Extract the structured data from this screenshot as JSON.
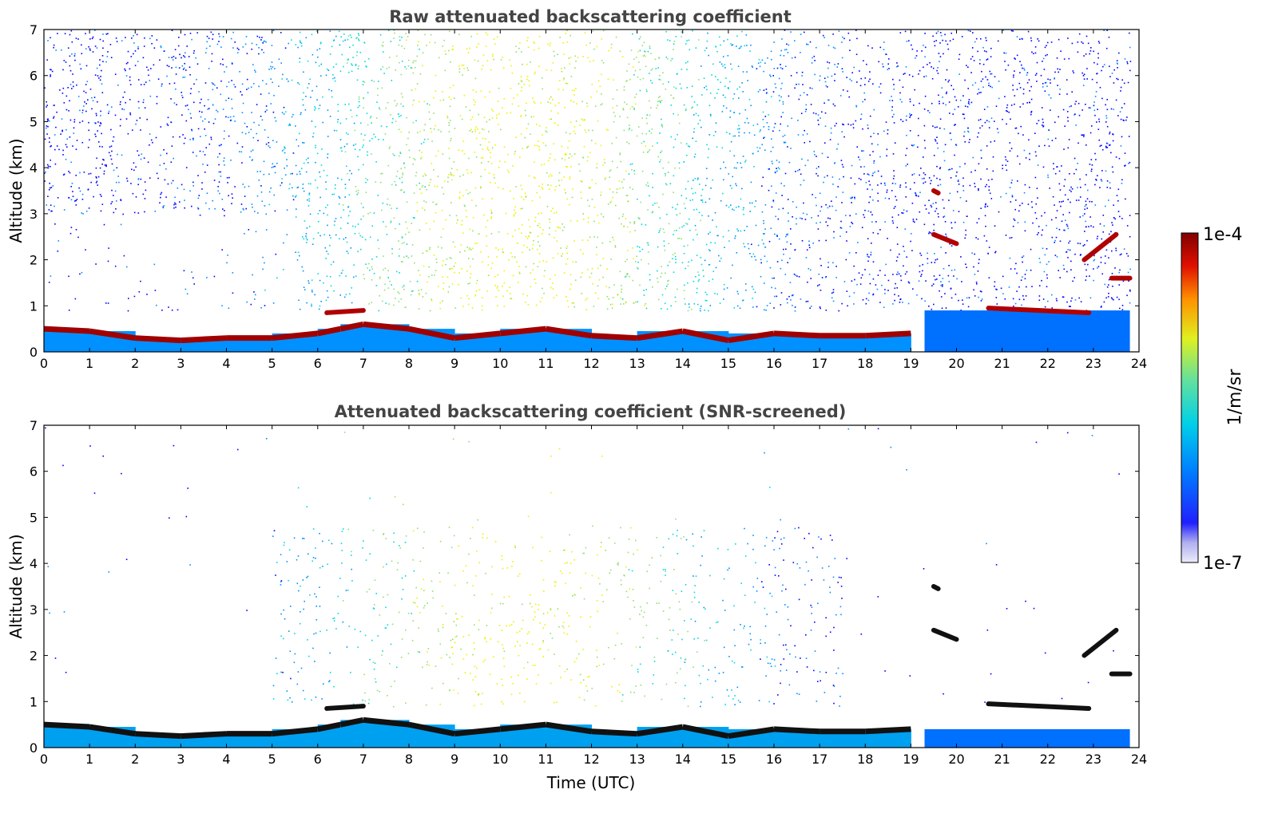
{
  "chart_data": [
    {
      "type": "heatmap",
      "title": "Raw attenuated backscattering coefficient",
      "xlabel": "",
      "ylabel": "Altitude (km)",
      "xlim": [
        0,
        24
      ],
      "ylim": [
        0,
        7
      ],
      "xticks": [
        "0",
        "1",
        "2",
        "3",
        "4",
        "5",
        "6",
        "7",
        "8",
        "9",
        "10",
        "11",
        "12",
        "13",
        "14",
        "15",
        "16",
        "17",
        "18",
        "19",
        "20",
        "21",
        "22",
        "23",
        "24"
      ],
      "yticks": [
        "0",
        "1",
        "2",
        "3",
        "4",
        "5",
        "6",
        "7"
      ],
      "boundary_layer_top_km": [
        [
          0,
          0.5
        ],
        [
          1,
          0.45
        ],
        [
          2,
          0.3
        ],
        [
          3,
          0.25
        ],
        [
          4,
          0.3
        ],
        [
          5,
          0.3
        ],
        [
          6,
          0.4
        ],
        [
          6.5,
          0.5
        ],
        [
          7,
          0.6
        ],
        [
          8,
          0.5
        ],
        [
          9,
          0.3
        ],
        [
          10,
          0.4
        ],
        [
          11,
          0.5
        ],
        [
          12,
          0.35
        ],
        [
          13,
          0.3
        ],
        [
          14,
          0.45
        ],
        [
          15,
          0.25
        ],
        [
          16,
          0.4
        ],
        [
          17,
          0.35
        ],
        [
          18,
          0.35
        ],
        [
          19,
          0.4
        ]
      ],
      "cloud_features_km": [
        {
          "x": [
            6.2,
            7.0
          ],
          "y": [
            0.85,
            0.9
          ]
        },
        {
          "x": [
            19.5,
            19.6
          ],
          "y": [
            3.5,
            3.45
          ]
        },
        {
          "x": [
            19.5,
            20.0
          ],
          "y": [
            2.55,
            2.35
          ]
        },
        {
          "x": [
            20.7,
            22.9
          ],
          "y": [
            0.95,
            0.85
          ]
        },
        {
          "x": [
            22.8,
            23.5
          ],
          "y": [
            2.0,
            2.55
          ]
        },
        {
          "x": [
            23.4,
            23.8
          ],
          "y": [
            1.6,
            1.6
          ]
        }
      ],
      "aerosol_signal_max_height_km": 7
    },
    {
      "type": "heatmap",
      "title": "Attenuated backscattering coefficient (SNR-screened)",
      "xlabel": "Time (UTC)",
      "ylabel": "Altitude (km)",
      "xlim": [
        0,
        24
      ],
      "ylim": [
        0,
        7
      ],
      "xticks": [
        "0",
        "1",
        "2",
        "3",
        "4",
        "5",
        "6",
        "7",
        "8",
        "9",
        "10",
        "11",
        "12",
        "13",
        "14",
        "15",
        "16",
        "17",
        "18",
        "19",
        "20",
        "21",
        "22",
        "23",
        "24"
      ],
      "yticks": [
        "0",
        "1",
        "2",
        "3",
        "4",
        "5",
        "6",
        "7"
      ],
      "screened_signal_region_km": {
        "x": [
          5,
          17.5
        ],
        "y": [
          0.8,
          4.8
        ]
      }
    }
  ],
  "colorbar": {
    "label": "1/m/sr",
    "max_label": "1e-4",
    "min_label": "1e-7",
    "scale": "log",
    "colors": [
      "#e8e8f8",
      "#b0b0f0",
      "#0000ff",
      "#0090ff",
      "#00d8e0",
      "#90e070",
      "#f0f000",
      "#ff8000",
      "#e01000",
      "#800000"
    ]
  }
}
